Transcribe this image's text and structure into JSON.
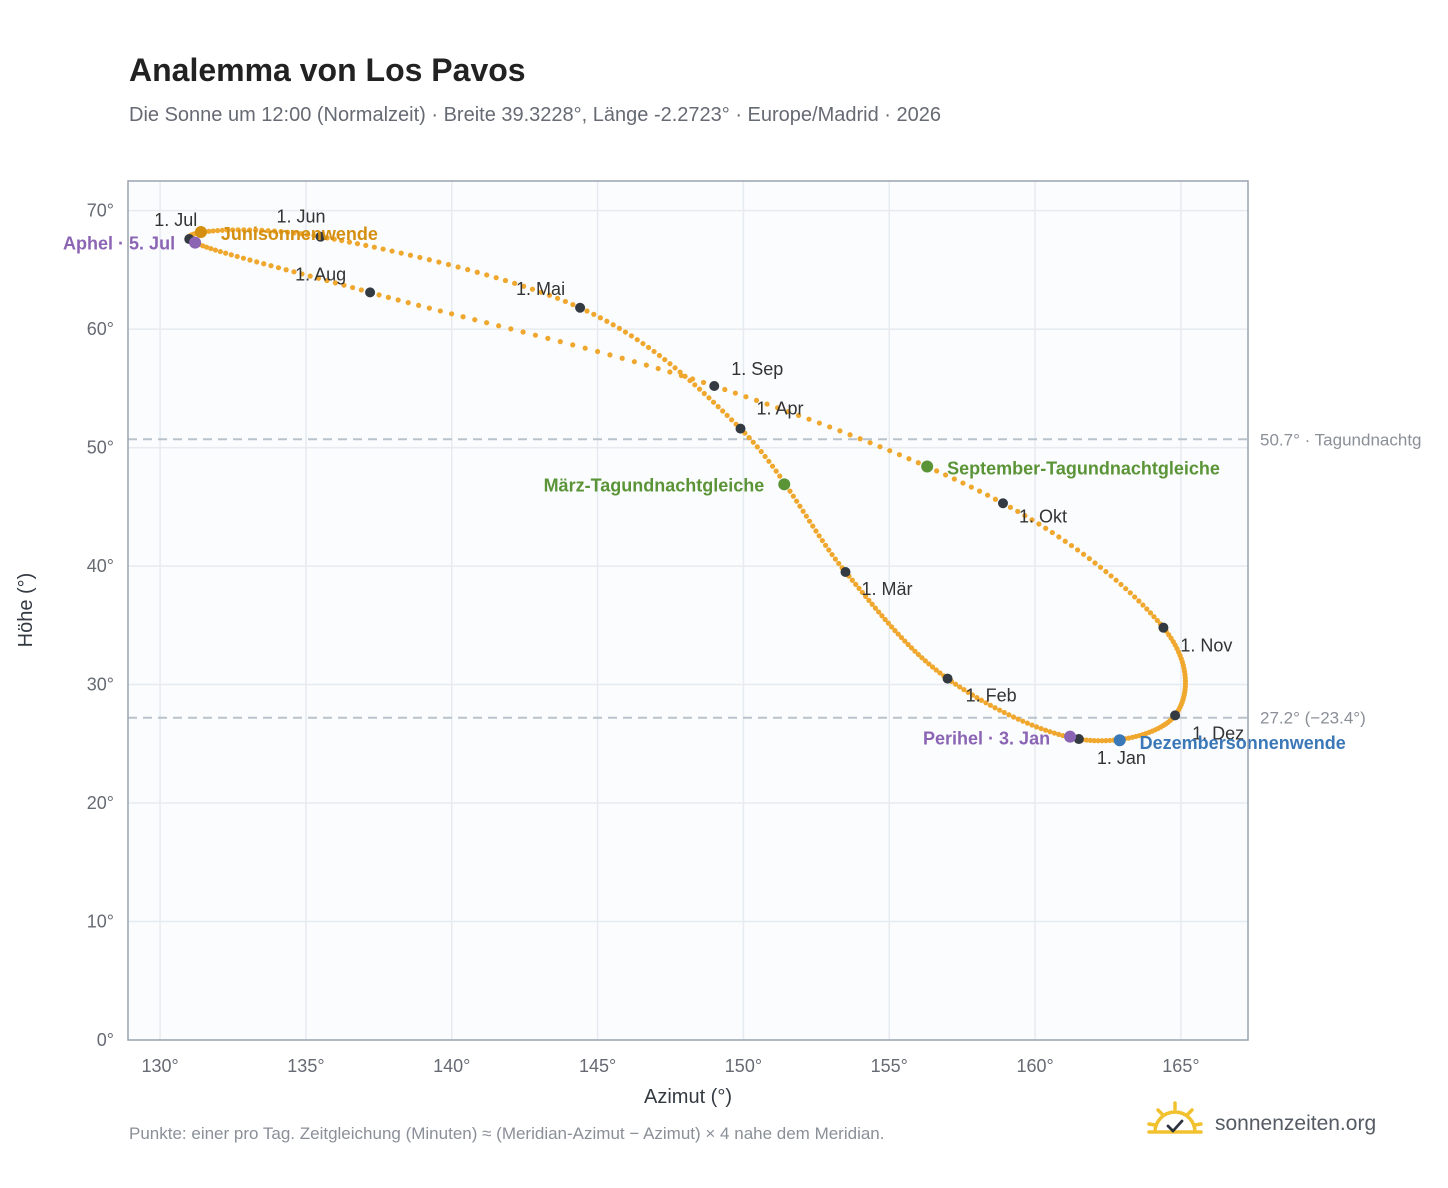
{
  "header": {
    "title": "Analemma von Los Pavos",
    "subtitle": "Die Sonne um 12:00 (Normalzeit) · Breite 39.3228°, Länge -2.2723° · Europe/Madrid · 2026"
  },
  "footer": {
    "note": "Punkte: einer pro Tag. Zeitgleichung (Minuten) ≈ (Meridian-Azimut − Azimut) × 4 nahe dem Meridian.",
    "brand": "sonnenzeiten.org",
    "brand_icon": "sun-check-icon"
  },
  "colors": {
    "curve": "#f0a72e",
    "month_point": "#333a42",
    "solstice_june": "#d48f10",
    "solstice_december": "#3a78b8",
    "equinox": "#5b9437",
    "apsis": "#8b64b4",
    "ref_line": "#b9c3cc",
    "plot_bg": "#fafcfe",
    "grid": "#e6ebf0",
    "frame": "#9aa4b0"
  },
  "chart_data": {
    "type": "scatter",
    "xlabel": "Azimut (°)",
    "ylabel": "Höhe (°)",
    "xlim": [
      128.9,
      167.3
    ],
    "ylim": [
      0,
      72.5
    ],
    "xticks": [
      130,
      135,
      140,
      145,
      150,
      155,
      160,
      165
    ],
    "yticks": [
      0,
      10,
      20,
      30,
      40,
      50,
      60,
      70
    ],
    "tick_suffix": "°",
    "grid": true,
    "months": [
      {
        "label": "1. Jan",
        "x": 161.5,
        "y": 25.4
      },
      {
        "label": "1. Feb",
        "x": 157.0,
        "y": 30.5
      },
      {
        "label": "1. Mär",
        "x": 153.5,
        "y": 39.5
      },
      {
        "label": "1. Apr",
        "x": 149.9,
        "y": 51.6
      },
      {
        "label": "1. Mai",
        "x": 144.4,
        "y": 61.8
      },
      {
        "label": "1. Jun",
        "x": 135.5,
        "y": 67.8
      },
      {
        "label": "1. Jul",
        "x": 131.0,
        "y": 67.6
      },
      {
        "label": "1. Aug",
        "x": 137.2,
        "y": 63.1
      },
      {
        "label": "1. Sep",
        "x": 149.0,
        "y": 55.2
      },
      {
        "label": "1. Okt",
        "x": 158.9,
        "y": 45.3
      },
      {
        "label": "1. Nov",
        "x": 164.4,
        "y": 34.8
      },
      {
        "label": "1. Dez",
        "x": 164.8,
        "y": 27.4
      }
    ],
    "events": [
      {
        "label": "Junisonnenwende",
        "x": 131.4,
        "y": 68.2,
        "kind": "solstice_june"
      },
      {
        "label": "Dezembersonnenwende",
        "x": 162.9,
        "y": 25.3,
        "kind": "solstice_december"
      },
      {
        "label": "März-Tagundnachtgleiche",
        "x": 151.4,
        "y": 46.9,
        "kind": "equinox"
      },
      {
        "label": "September-Tagundnachtgleiche",
        "x": 156.3,
        "y": 48.4,
        "kind": "equinox"
      },
      {
        "label": "Aphel · 5. Jul",
        "x": 131.2,
        "y": 67.3,
        "kind": "apsis"
      },
      {
        "label": "Perihel · 3. Jan",
        "x": 161.2,
        "y": 25.6,
        "kind": "apsis"
      }
    ],
    "reference_lines": [
      {
        "y": 50.7,
        "label": "50.7° · Tagundnachtg"
      },
      {
        "y": 27.2,
        "label": "27.2° (−23.4°)"
      }
    ]
  }
}
